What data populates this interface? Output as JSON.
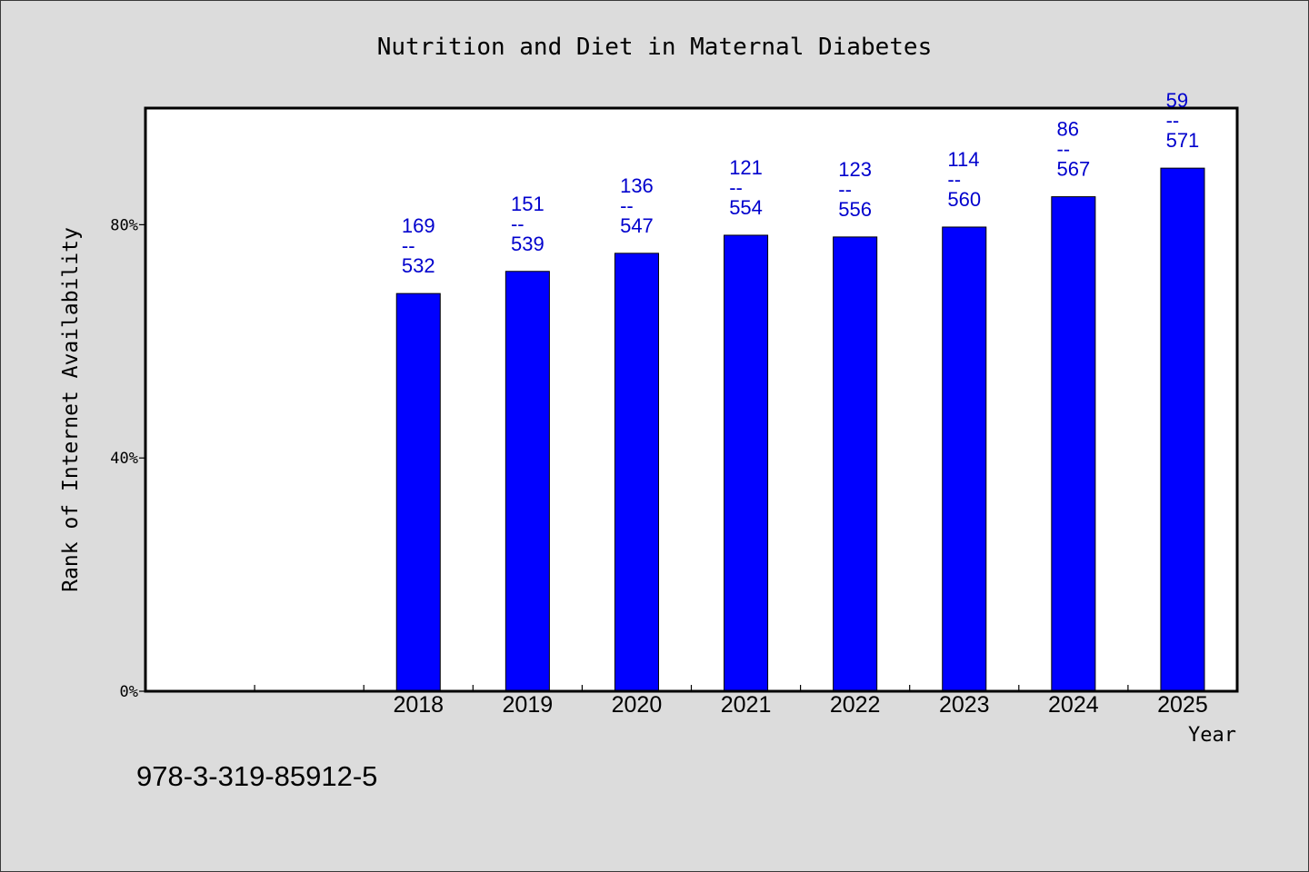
{
  "page": {
    "background": "#dcdcdc",
    "annotation": "978-3-319-85912-5"
  },
  "chart_data": {
    "type": "bar",
    "title": "Nutrition and Diet in Maternal Diabetes",
    "xlabel": "Year",
    "ylabel": "Rank of Internet Availability",
    "categories": [
      "2018",
      "2019",
      "2020",
      "2021",
      "2022",
      "2023",
      "2024",
      "2025"
    ],
    "values": [
      68.2,
      72.0,
      75.1,
      78.2,
      77.9,
      79.6,
      84.8,
      89.7
    ],
    "xlim": [
      2015.5,
      2025.5
    ],
    "ylim": [
      0,
      100
    ],
    "yticks": [
      0,
      40,
      80
    ],
    "ytick_labels": [
      "0%",
      "40%",
      "80%"
    ],
    "data_labels": [
      {
        "rank": "169",
        "separator": "--",
        "total": "532"
      },
      {
        "rank": "151",
        "separator": "--",
        "total": "539"
      },
      {
        "rank": "136",
        "separator": "--",
        "total": "547"
      },
      {
        "rank": "121",
        "separator": "--",
        "total": "554"
      },
      {
        "rank": "123",
        "separator": "--",
        "total": "556"
      },
      {
        "rank": "114",
        "separator": "--",
        "total": "560"
      },
      {
        "rank": "86",
        "separator": "--",
        "total": "567"
      },
      {
        "rank": "59",
        "separator": "--",
        "total": "571"
      }
    ],
    "grid": false,
    "colors": {
      "plot_background": "#ffffff",
      "bar": "#0000ff",
      "bar_edge": "#000000",
      "data_label": "#0000cd",
      "text": "#000000"
    }
  }
}
